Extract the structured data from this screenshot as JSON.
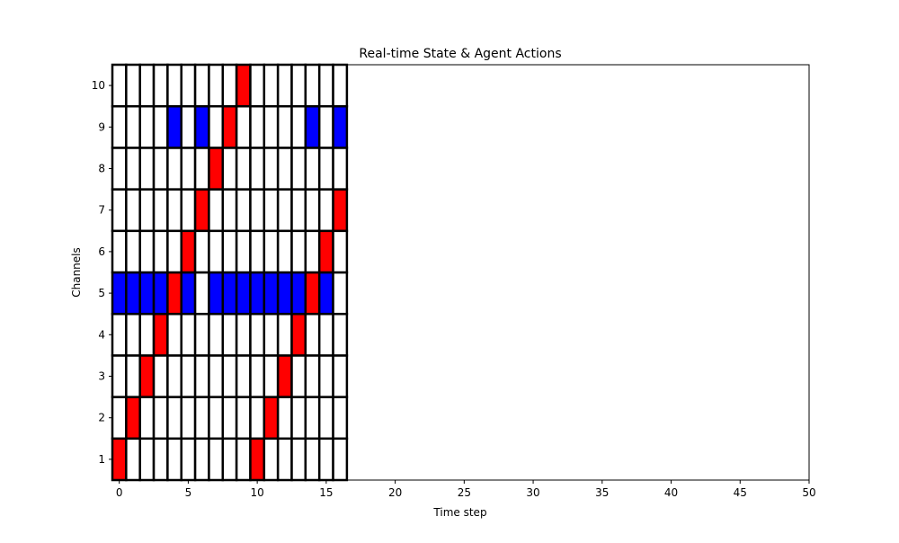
{
  "chart_data": {
    "type": "heatmap",
    "title": "Real-time State & Agent Actions",
    "xlabel": "Time step",
    "ylabel": "Channels",
    "xlim": [
      -0.5,
      50
    ],
    "ylim": [
      0.5,
      10.5
    ],
    "x_ticks": [
      0,
      5,
      10,
      15,
      20,
      25,
      30,
      35,
      40,
      45,
      50
    ],
    "y_ticks": [
      1,
      2,
      3,
      4,
      5,
      6,
      7,
      8,
      9,
      10
    ],
    "grid": false,
    "colors": {
      "agent_action": "#ff0000",
      "occupied": "#0000ff",
      "free": "#ffffff",
      "cell_edge": "#000000"
    },
    "time_steps": 17,
    "channels": 10,
    "agent_actions": [
      {
        "t": 0,
        "channel": 1
      },
      {
        "t": 1,
        "channel": 2
      },
      {
        "t": 2,
        "channel": 3
      },
      {
        "t": 3,
        "channel": 4
      },
      {
        "t": 4,
        "channel": 5
      },
      {
        "t": 5,
        "channel": 6
      },
      {
        "t": 6,
        "channel": 7
      },
      {
        "t": 7,
        "channel": 8
      },
      {
        "t": 8,
        "channel": 9
      },
      {
        "t": 9,
        "channel": 10
      },
      {
        "t": 10,
        "channel": 1
      },
      {
        "t": 11,
        "channel": 2
      },
      {
        "t": 12,
        "channel": 3
      },
      {
        "t": 13,
        "channel": 4
      },
      {
        "t": 14,
        "channel": 5
      },
      {
        "t": 15,
        "channel": 6
      },
      {
        "t": 16,
        "channel": 7
      }
    ],
    "occupied_cells": [
      {
        "t": 0,
        "channel": 5
      },
      {
        "t": 1,
        "channel": 5
      },
      {
        "t": 2,
        "channel": 5
      },
      {
        "t": 3,
        "channel": 5
      },
      {
        "t": 5,
        "channel": 5
      },
      {
        "t": 7,
        "channel": 5
      },
      {
        "t": 8,
        "channel": 5
      },
      {
        "t": 9,
        "channel": 5
      },
      {
        "t": 10,
        "channel": 5
      },
      {
        "t": 11,
        "channel": 5
      },
      {
        "t": 12,
        "channel": 5
      },
      {
        "t": 13,
        "channel": 5
      },
      {
        "t": 15,
        "channel": 5
      },
      {
        "t": 4,
        "channel": 9
      },
      {
        "t": 6,
        "channel": 9
      },
      {
        "t": 14,
        "channel": 9
      },
      {
        "t": 16,
        "channel": 9
      }
    ]
  }
}
